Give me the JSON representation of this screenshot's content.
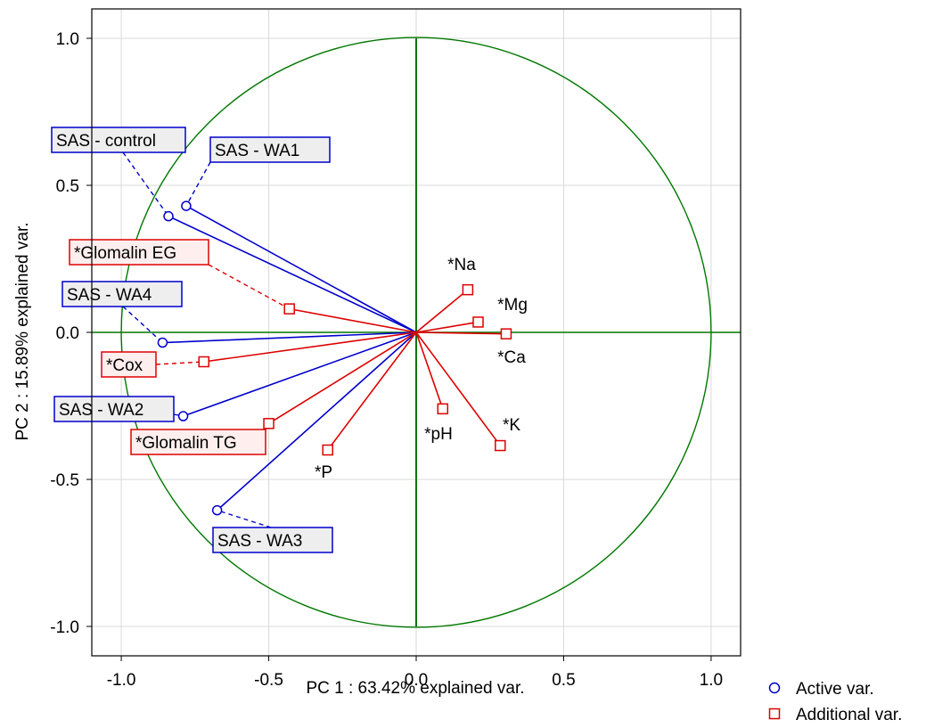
{
  "chart_data": {
    "type": "scatter",
    "xlabel": "PC 1 : 63.42% explained var.",
    "ylabel": "PC 2 : 15.89% explained var.",
    "xlim": [
      -1.1,
      1.1
    ],
    "ylim": [
      -1.1,
      1.1
    ],
    "x_ticks": [
      "-1.0",
      "-0.5",
      "0.0",
      "0.5",
      "1.0"
    ],
    "y_ticks": [
      "1.0",
      "0.5",
      "0.0",
      "-0.5",
      "-1.0"
    ],
    "grid": true,
    "unit_circle": true,
    "legend_position": "bottom-right",
    "colors": {
      "active": "#0000cc",
      "additional": "#dd0000",
      "circle": "#007700"
    },
    "series": [
      {
        "name": "Active var.",
        "marker": "circle",
        "points": [
          {
            "label": "SAS - control",
            "x": -0.84,
            "y": 0.395,
            "boxed": true
          },
          {
            "label": "SAS - WA1",
            "x": -0.78,
            "y": 0.43,
            "boxed": true
          },
          {
            "label": "SAS - WA4",
            "x": -0.86,
            "y": -0.035,
            "boxed": true
          },
          {
            "label": "SAS - WA2",
            "x": -0.79,
            "y": -0.285,
            "boxed": true
          },
          {
            "label": "SAS - WA3",
            "x": -0.675,
            "y": -0.605,
            "boxed": true
          }
        ]
      },
      {
        "name": "Additional var.",
        "marker": "square",
        "points": [
          {
            "label": "*Glomalin EG",
            "x": -0.43,
            "y": 0.08,
            "boxed": true
          },
          {
            "label": "*Cox",
            "x": -0.72,
            "y": -0.1,
            "boxed": true
          },
          {
            "label": "*Glomalin TG",
            "x": -0.5,
            "y": -0.31,
            "boxed": true
          },
          {
            "label": "*P",
            "x": -0.3,
            "y": -0.4,
            "boxed": false
          },
          {
            "label": "*pH",
            "x": 0.09,
            "y": -0.26,
            "boxed": false
          },
          {
            "label": "*Na",
            "x": 0.175,
            "y": 0.145,
            "boxed": false
          },
          {
            "label": "*Mg",
            "x": 0.21,
            "y": 0.035,
            "boxed": false
          },
          {
            "label": "*Ca",
            "x": 0.305,
            "y": -0.005,
            "boxed": false
          },
          {
            "label": "*K",
            "x": 0.285,
            "y": -0.385,
            "boxed": false
          }
        ]
      }
    ]
  }
}
